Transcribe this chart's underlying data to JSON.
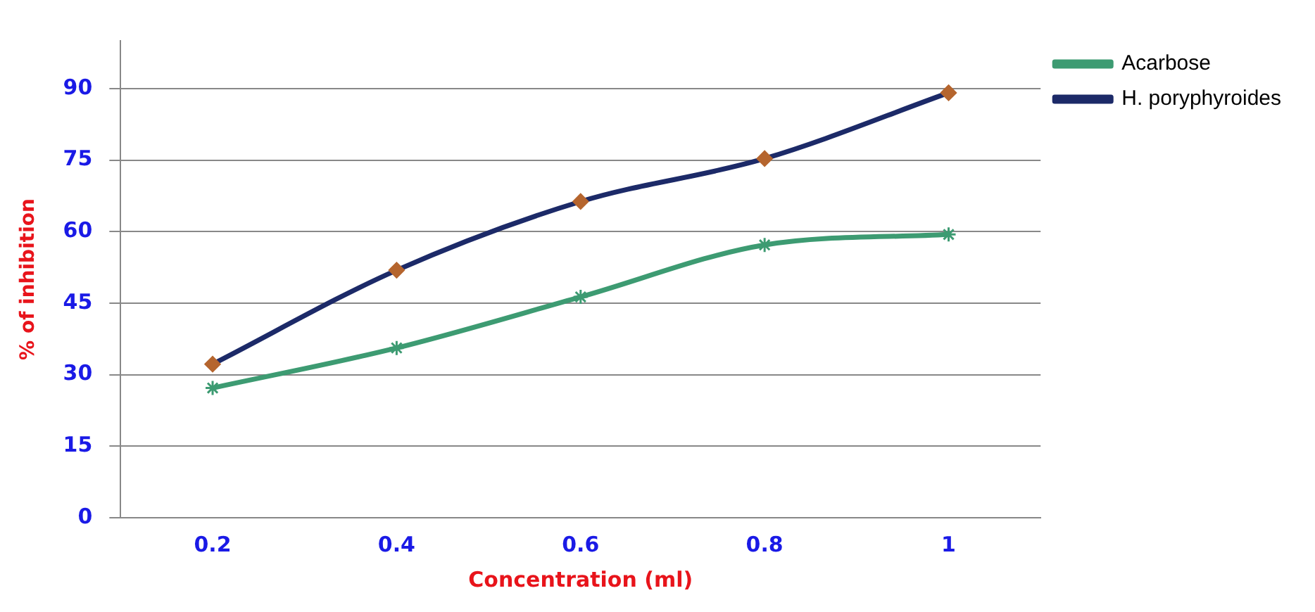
{
  "chart_data": {
    "type": "line",
    "xlabel": "Concentration (ml)",
    "ylabel": "% of inhibition",
    "categories": [
      "0.2",
      "0.4",
      "0.6",
      "0.8",
      "1"
    ],
    "series": [
      {
        "name": "Acarbose",
        "color": "#3d9b72",
        "marker": "cross",
        "values": [
          27.2,
          35.6,
          46.3,
          57.2,
          59.4
        ]
      },
      {
        "name": "H. poryphyroides",
        "color": "#1c2a68",
        "marker": "diamond",
        "values": [
          32.2,
          51.9,
          66.3,
          75.3,
          89.1
        ]
      }
    ],
    "ylim": [
      0,
      100
    ],
    "yticks": [
      0,
      15,
      30,
      45,
      60,
      75,
      90
    ],
    "grid": "y",
    "legend": "top right"
  }
}
